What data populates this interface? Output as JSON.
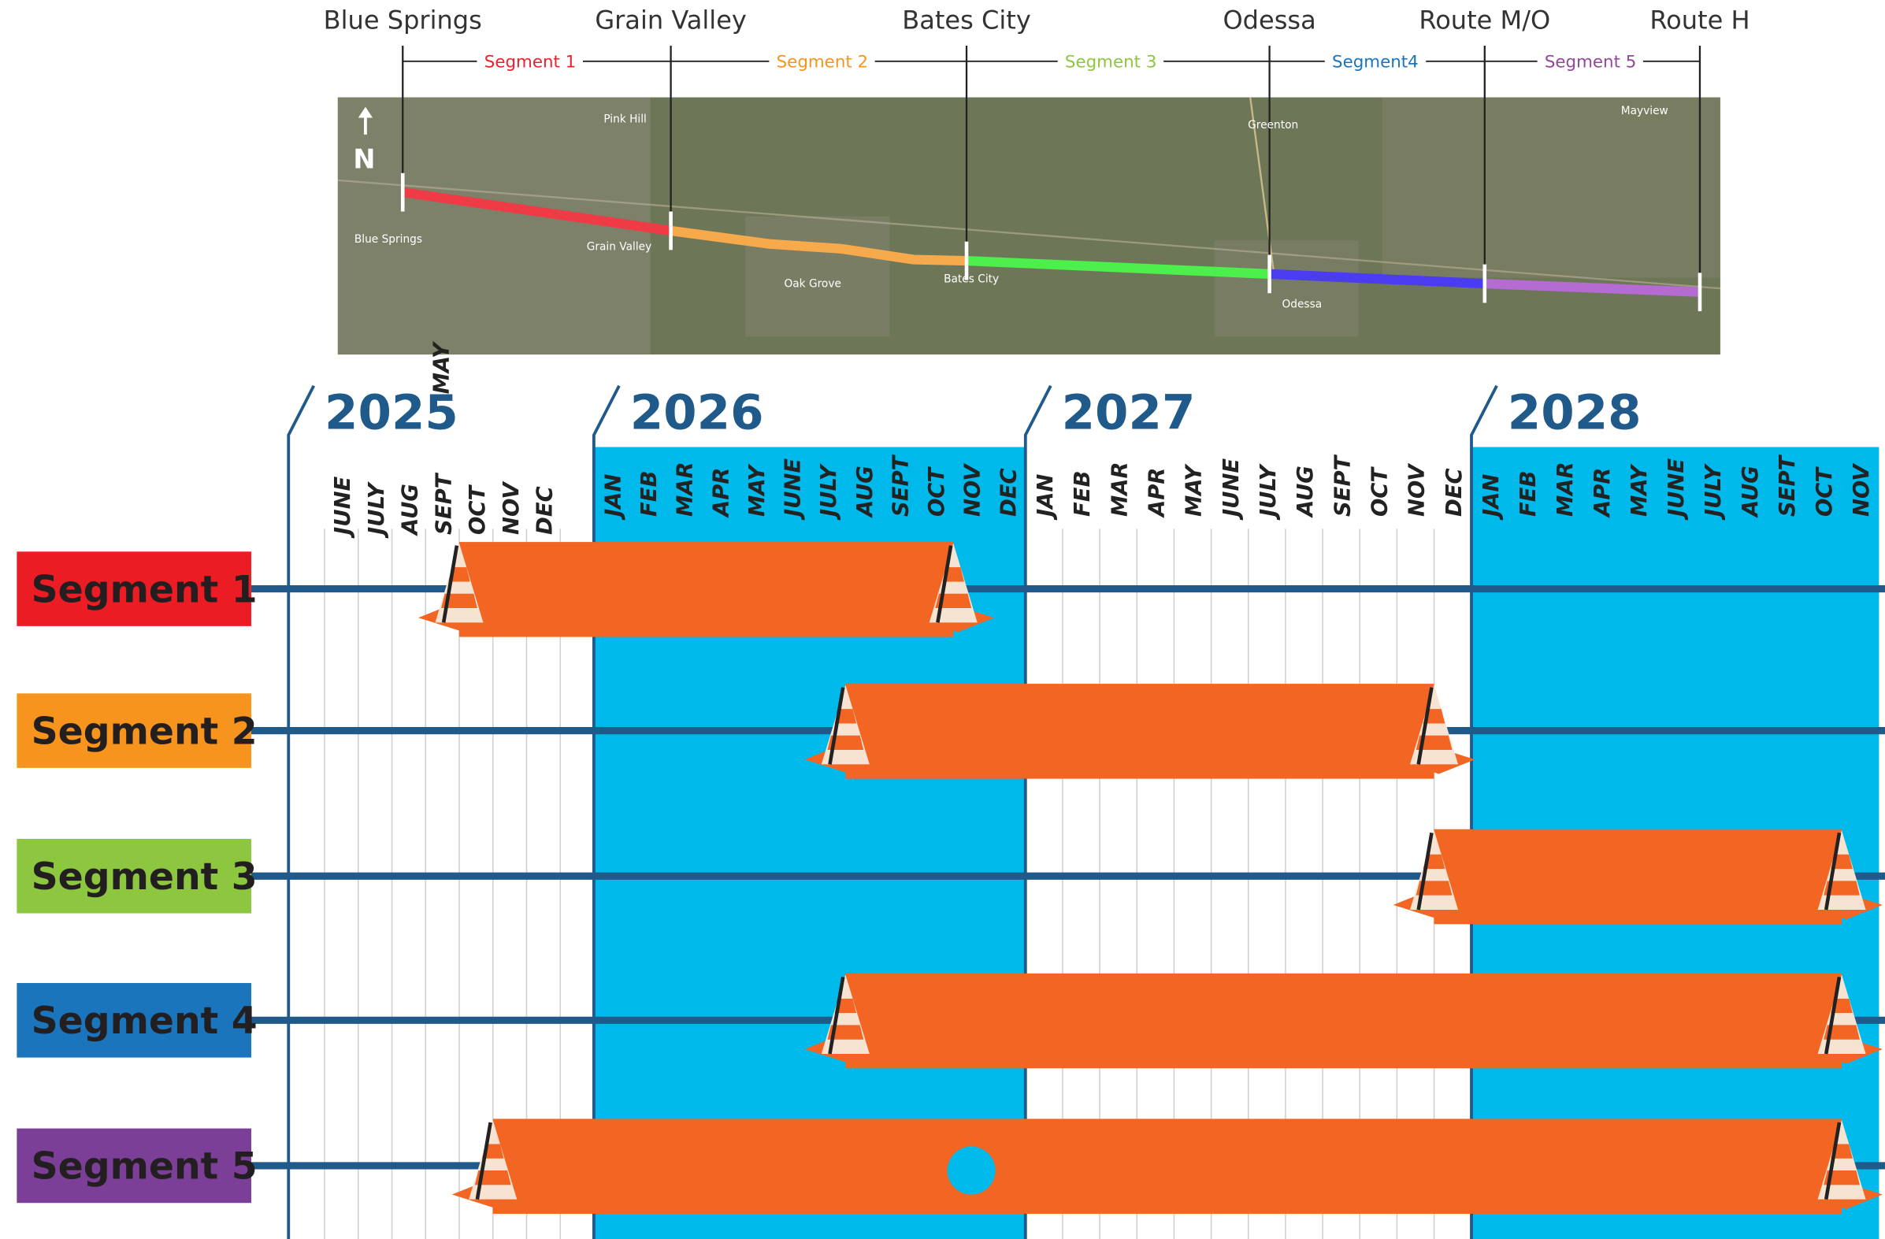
{
  "map": {
    "towns": [
      "Blue Springs",
      "Grain Valley",
      "Bates City",
      "Odessa",
      "Route M/O",
      "Route H"
    ],
    "segments": [
      "Segment 1",
      "Segment 2",
      "Segment 3",
      "Segment4",
      "Segment 5"
    ],
    "labels": [
      "Pink Hill",
      "Blue Springs",
      "Grain Valley",
      "Oak Grove",
      "Bates City",
      "Greenton",
      "Odessa",
      "Mayview"
    ],
    "north": "N"
  },
  "chart_data": {
    "type": "gantt",
    "years": [
      {
        "label": "2025",
        "months": [
          "MAY",
          "JUNE",
          "JULY",
          "AUG",
          "SEPT",
          "OCT",
          "NOV",
          "DEC"
        ]
      },
      {
        "label": "2026",
        "months": [
          "JAN",
          "FEB",
          "MAR",
          "APR",
          "MAY",
          "JUNE",
          "JULY",
          "AUG",
          "SEPT",
          "OCT",
          "NOV",
          "DEC"
        ]
      },
      {
        "label": "2027",
        "months": [
          "JAN",
          "FEB",
          "MAR",
          "APR",
          "MAY",
          "JUNE",
          "JULY",
          "AUG",
          "SEPT",
          "OCT",
          "NOV",
          "DEC"
        ]
      },
      {
        "label": "2028",
        "months": [
          "JAN",
          "FEB",
          "MAR",
          "APR",
          "MAY",
          "JUNE",
          "JULY",
          "AUG",
          "SEPT",
          "OCT",
          "NOV"
        ]
      }
    ],
    "tasks": [
      {
        "name": "Segment 1",
        "color": "#ec1c24",
        "start": "2025-10",
        "end": "2026-11"
      },
      {
        "name": "Segment 2",
        "color": "#f7941d",
        "start": "2026-08",
        "end": "2027-12"
      },
      {
        "name": "Segment 3",
        "color": "#8dc63f",
        "start": "2027-12",
        "end": "2028-11"
      },
      {
        "name": "Segment 4",
        "color": "#1b75bc",
        "start": "2026-08",
        "end": "2028-11"
      },
      {
        "name": "Segment 5",
        "color": "#7b3f98",
        "start": "2025-11",
        "end": "2028-11"
      }
    ]
  }
}
